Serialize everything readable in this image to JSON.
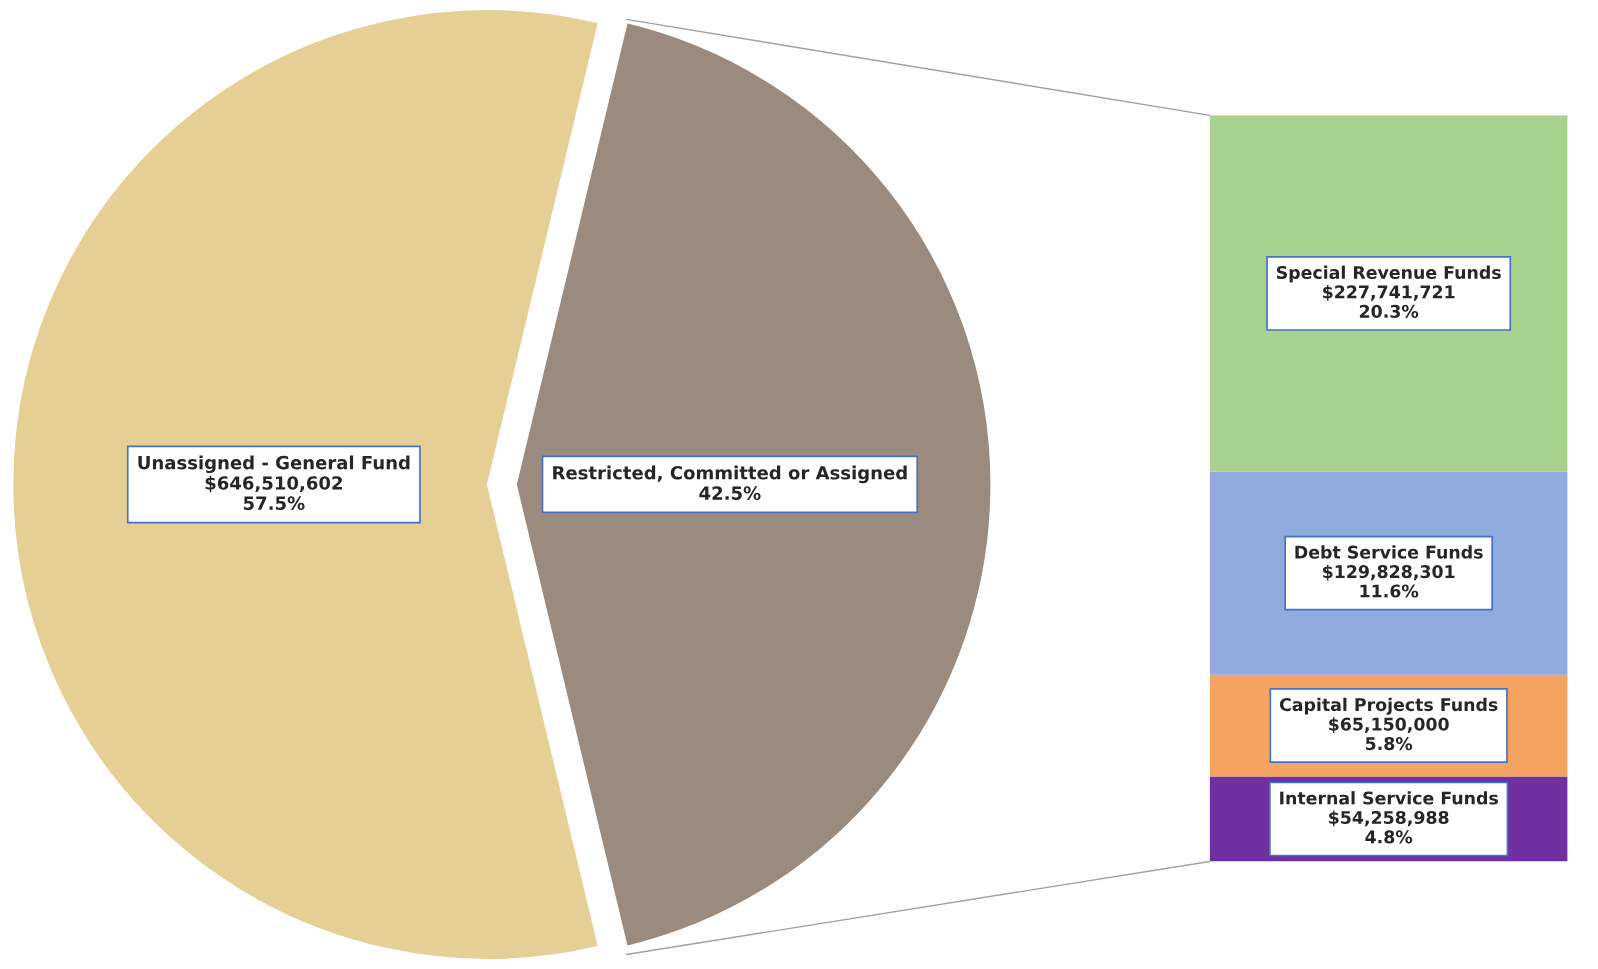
{
  "chart_data": [
    {
      "type": "pie",
      "categories": [
        "Unassigned - General Fund",
        "Restricted, Committed or Assigned"
      ],
      "values": [
        57.5,
        42.5
      ],
      "colors": [
        "#e6cf94",
        "#9b8b7e"
      ],
      "value_labels": [
        "$646,510,602\n57.5%",
        "42.5%"
      ]
    },
    {
      "type": "bar",
      "stacked": true,
      "categories": [
        null
      ],
      "series": [
        {
          "name": "Internal Service Funds",
          "color": "#7030a0",
          "values": [
            54258988
          ],
          "value_labels": [
            "$54,258,988\n4.8%"
          ]
        },
        {
          "name": "Capital Projects Funds",
          "color": "#f4a460",
          "values": [
            65150000
          ],
          "value_labels": [
            "$65,150,000\n5.8%"
          ]
        },
        {
          "name": "Debt Service Funds",
          "color": "#8faadc",
          "values": [
            129828301
          ],
          "value_labels": [
            "$129,828,301\n11.6%"
          ]
        },
        {
          "name": "Special Revenue Funds",
          "color": "#a9d18e",
          "values": [
            227741721
          ],
          "value_labels": [
            "$227,741,721\n20.3%"
          ]
        }
      ]
    }
  ]
}
